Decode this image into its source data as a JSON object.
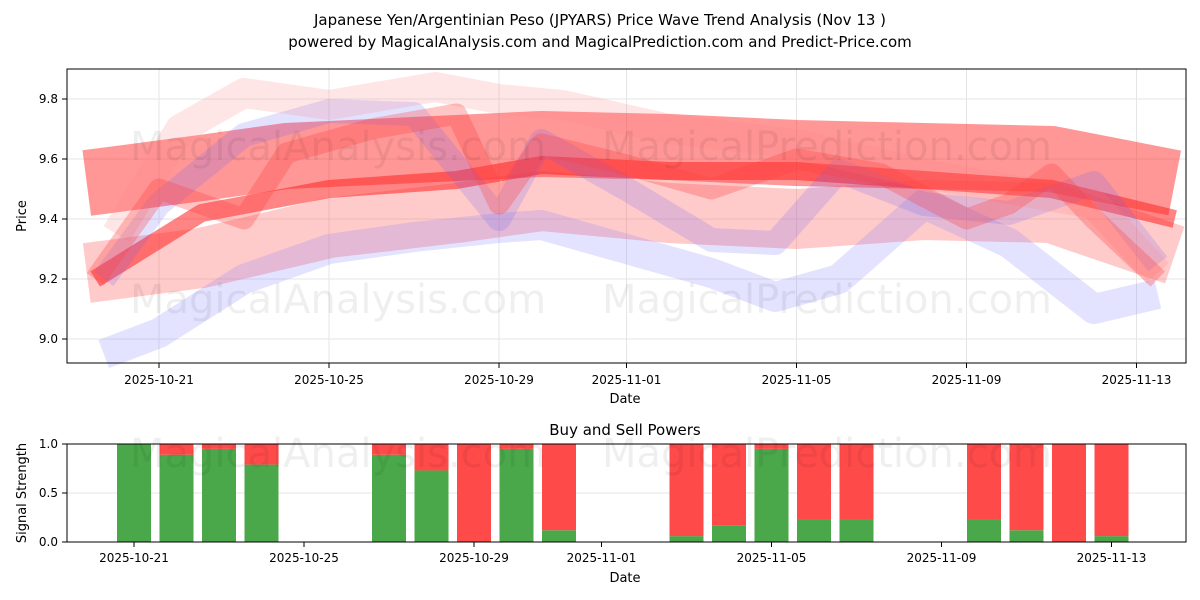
{
  "title_line1": "Japanese Yen/Argentinian Peso (JPYARS) Price Wave Trend Analysis (Nov 13 )",
  "title_line2": "powered by MagicalAnalysis.com and MagicalPrediction.com and Predict-Price.com",
  "watermarks": [
    "MagicalAnalysis.com",
    "MagicalPrediction.com"
  ],
  "chart_data": [
    {
      "type": "area",
      "title": "",
      "xlabel": "Date",
      "ylabel": "Price",
      "ylim": [
        8.92,
        9.9
      ],
      "yticks": [
        "9.0",
        "9.2",
        "9.4",
        "9.6",
        "9.8"
      ],
      "xticks": [
        "2025-10-21",
        "2025-10-25",
        "2025-10-29",
        "2025-11-01",
        "2025-11-05",
        "2025-11-09",
        "2025-11-13"
      ],
      "grid": true,
      "x_note": "x values are days after 2025-10-19",
      "series": [
        {
          "name": "band-red-main",
          "color": "#ff3030",
          "opacity": 0.5,
          "width": 0.22,
          "x": [
            0.3,
            3,
            5,
            8,
            11,
            14,
            17,
            20,
            23,
            25.9
          ],
          "y": [
            9.52,
            9.57,
            9.61,
            9.63,
            9.65,
            9.64,
            9.62,
            9.61,
            9.6,
            9.52
          ]
        },
        {
          "name": "band-red-low",
          "color": "#ff5050",
          "opacity": 0.3,
          "width": 0.2,
          "x": [
            0.3,
            3,
            6,
            9,
            11,
            14,
            17,
            20,
            23,
            25.9
          ],
          "y": [
            9.22,
            9.27,
            9.37,
            9.42,
            9.46,
            9.42,
            9.4,
            9.43,
            9.42,
            9.28
          ]
        },
        {
          "name": "line-red-mid",
          "color": "#ff2020",
          "opacity": 0.55,
          "width": 0.06,
          "x": [
            0.5,
            3,
            6,
            9,
            11,
            14,
            17,
            20,
            23,
            25.9
          ],
          "y": [
            9.2,
            9.42,
            9.5,
            9.53,
            9.58,
            9.56,
            9.56,
            9.53,
            9.5,
            9.4
          ]
        },
        {
          "name": "band-blue-low",
          "color": "#8080ff",
          "opacity": 0.22,
          "width": 0.1,
          "x": [
            0.7,
            2,
            4,
            6,
            8,
            10,
            11,
            13,
            15,
            16.5,
            18,
            20,
            22,
            24,
            25.5
          ],
          "y": [
            8.95,
            9.02,
            9.2,
            9.3,
            9.34,
            9.37,
            9.38,
            9.3,
            9.22,
            9.14,
            9.2,
            9.45,
            9.32,
            9.1,
            9.15
          ]
        },
        {
          "name": "band-blue-up",
          "color": "#6060ff",
          "opacity": 0.18,
          "width": 0.08,
          "x": [
            0.7,
            2,
            4,
            6,
            8,
            10,
            11,
            13,
            15,
            16.5,
            18,
            20,
            22,
            24,
            25.5
          ],
          "y": [
            9.2,
            9.45,
            9.68,
            9.76,
            9.75,
            9.4,
            9.66,
            9.5,
            9.33,
            9.32,
            9.56,
            9.45,
            9.42,
            9.52,
            9.25
          ]
        },
        {
          "name": "band-pink-up",
          "color": "#ff8080",
          "opacity": 0.2,
          "width": 0.1,
          "x": [
            1,
            2.5,
            4,
            6,
            8.5,
            10,
            11.5,
            14,
            17,
            20,
            22,
            24,
            25.5
          ],
          "y": [
            9.35,
            9.7,
            9.82,
            9.78,
            9.84,
            9.8,
            9.78,
            9.7,
            9.65,
            9.55,
            9.5,
            9.45,
            9.22
          ]
        },
        {
          "name": "band-red-wave",
          "color": "#ff4040",
          "opacity": 0.3,
          "width": 0.07,
          "x": [
            0.5,
            2,
            3,
            4,
            5,
            7,
            9,
            10,
            11,
            13,
            15,
            17,
            19,
            21,
            22,
            23,
            24,
            25.5
          ],
          "y": [
            9.2,
            9.5,
            9.45,
            9.4,
            9.62,
            9.7,
            9.75,
            9.45,
            9.65,
            9.58,
            9.5,
            9.6,
            9.55,
            9.4,
            9.45,
            9.55,
            9.4,
            9.2
          ]
        }
      ]
    },
    {
      "type": "bar",
      "title": "Buy and Sell Powers",
      "xlabel": "Date",
      "ylabel": "Signal Strength",
      "ylim": [
        0,
        1
      ],
      "yticks": [
        "0.0",
        "0.5",
        "1.0"
      ],
      "xticks": [
        "2025-10-21",
        "2025-10-25",
        "2025-10-29",
        "2025-11-01",
        "2025-11-05",
        "2025-11-09",
        "2025-11-13"
      ],
      "categories": [
        "2025-10-21",
        "2025-10-22",
        "2025-10-23",
        "2025-10-24",
        "2025-10-27",
        "2025-10-28",
        "2025-10-29",
        "2025-10-30",
        "2025-10-31",
        "2025-11-03",
        "2025-11-04",
        "2025-11-05",
        "2025-11-06",
        "2025-11-07",
        "2025-11-10",
        "2025-11-11",
        "2025-11-12",
        "2025-11-13"
      ],
      "x_day": [
        2,
        3,
        4,
        5,
        8,
        9,
        10,
        11,
        12,
        15,
        16,
        17,
        18,
        19,
        22,
        23,
        24,
        25
      ],
      "series": [
        {
          "name": "Buy",
          "color": "#4aa84a",
          "values": [
            1.0,
            0.89,
            0.95,
            0.79,
            0.89,
            0.73,
            0.0,
            0.95,
            0.12,
            0.06,
            0.17,
            0.95,
            0.23,
            0.23,
            0.23,
            0.12,
            0.0,
            0.06
          ]
        },
        {
          "name": "Sell",
          "color": "#ff4a4a",
          "values": [
            0.0,
            0.11,
            0.05,
            0.21,
            0.11,
            0.27,
            1.0,
            0.05,
            0.88,
            0.94,
            0.83,
            0.05,
            0.77,
            0.77,
            0.77,
            0.88,
            1.0,
            0.94
          ]
        }
      ]
    }
  ]
}
